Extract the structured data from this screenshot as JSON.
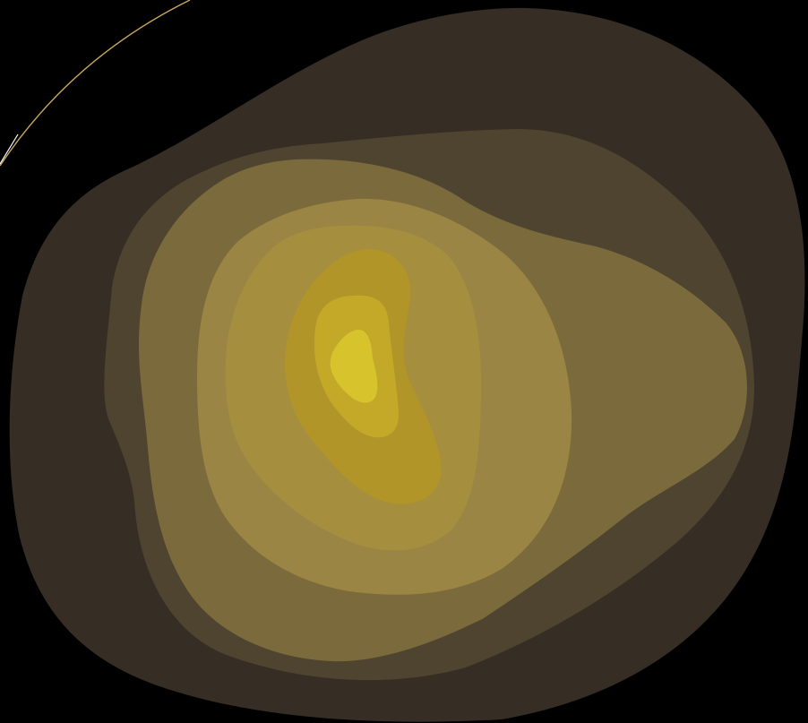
{
  "background_color": "#000000",
  "accent_line_color": "#c8a85a",
  "accent_line_tip_color": "#ffffff",
  "contour_levels": [
    {
      "level": 1,
      "color": "#362d24"
    },
    {
      "level": 2,
      "color": "#4f4430"
    },
    {
      "level": 3,
      "color": "#7b6b3c"
    },
    {
      "level": 4,
      "color": "#9b8544"
    },
    {
      "level": 5,
      "color": "#a58f3f"
    },
    {
      "level": 6,
      "color": "#b29528"
    },
    {
      "level": 7,
      "color": "#c4a928"
    },
    {
      "level": 8,
      "color": "#d7c42c"
    }
  ]
}
